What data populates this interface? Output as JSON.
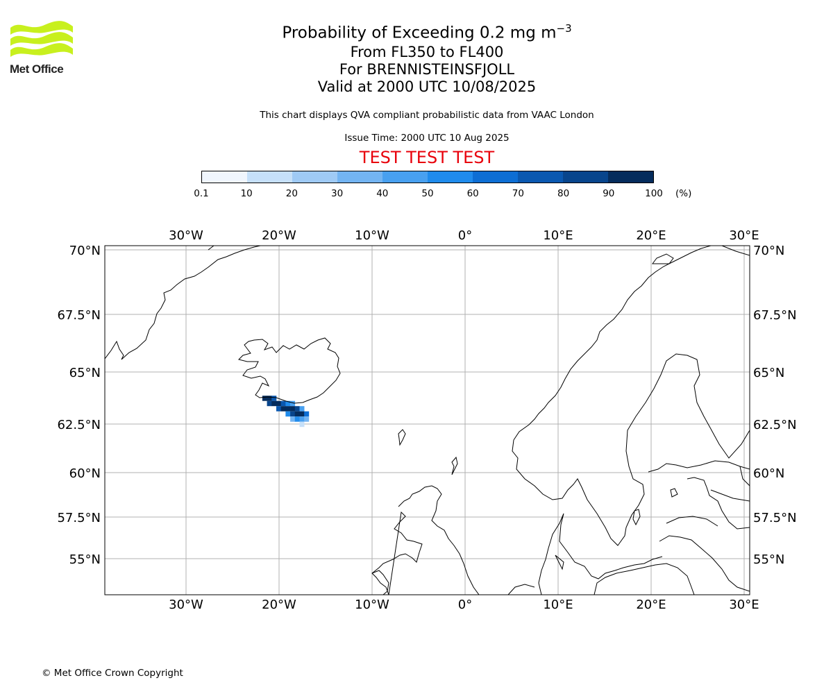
{
  "logo": {
    "text": "Met Office",
    "color": "#c8f01e"
  },
  "title": {
    "main": "Probability of Exceeding 0.2 mg m",
    "main_superscript": "−3",
    "level_range": "From FL350 to FL400",
    "volcano": "For BRENNISTEINSFJOLL",
    "valid_time": "Valid at 2000 UTC 10/08/2025"
  },
  "note": "This chart displays QVA compliant probabilistic data from VAAC London",
  "issue_time": "Issue Time: 2000 UTC 10 Aug 2025",
  "test_banner": "TEST TEST TEST",
  "test_color": "#e8000b",
  "colorbar": {
    "ticks": [
      "0.1",
      "10",
      "20",
      "30",
      "40",
      "50",
      "60",
      "70",
      "80",
      "90",
      "100"
    ],
    "unit": "(%)",
    "colors": [
      "#f0f6fd",
      "#c6e0f9",
      "#9fcaf5",
      "#73b4f2",
      "#48a0f0",
      "#1f8bec",
      "#0d6ed4",
      "#0a58b0",
      "#08458c",
      "#052c5c"
    ]
  },
  "map": {
    "lon_labels": [
      "30°W",
      "20°W",
      "10°W",
      "0°",
      "10°E",
      "20°E",
      "30°E"
    ],
    "lat_labels": [
      "70°N",
      "67.5°N",
      "65°N",
      "62.5°N",
      "60°N",
      "57.5°N",
      "55°N"
    ],
    "gridline_color": "#b0b0b0",
    "plume_cells": [
      {
        "lat": 63.86,
        "lon": -21.8,
        "prob": 95
      },
      {
        "lat": 63.86,
        "lon": -21.3,
        "prob": 90
      },
      {
        "lat": 63.86,
        "lon": -20.8,
        "prob": 75
      },
      {
        "lat": 63.61,
        "lon": -21.3,
        "prob": 85
      },
      {
        "lat": 63.61,
        "lon": -20.8,
        "prob": 95
      },
      {
        "lat": 63.61,
        "lon": -20.3,
        "prob": 90
      },
      {
        "lat": 63.61,
        "lon": -19.8,
        "prob": 70
      },
      {
        "lat": 63.61,
        "lon": -19.3,
        "prob": 55
      },
      {
        "lat": 63.61,
        "lon": -18.8,
        "prob": 45
      },
      {
        "lat": 63.36,
        "lon": -20.3,
        "prob": 70
      },
      {
        "lat": 63.36,
        "lon": -19.8,
        "prob": 95
      },
      {
        "lat": 63.36,
        "lon": -19.3,
        "prob": 98
      },
      {
        "lat": 63.36,
        "lon": -18.8,
        "prob": 95
      },
      {
        "lat": 63.36,
        "lon": -18.3,
        "prob": 85
      },
      {
        "lat": 63.36,
        "lon": -17.8,
        "prob": 45
      },
      {
        "lat": 63.11,
        "lon": -19.3,
        "prob": 55
      },
      {
        "lat": 63.11,
        "lon": -18.8,
        "prob": 80
      },
      {
        "lat": 63.11,
        "lon": -18.3,
        "prob": 95
      },
      {
        "lat": 63.11,
        "lon": -17.8,
        "prob": 90
      },
      {
        "lat": 63.11,
        "lon": -17.3,
        "prob": 60
      },
      {
        "lat": 62.86,
        "lon": -18.8,
        "prob": 35
      },
      {
        "lat": 62.86,
        "lon": -18.3,
        "prob": 55
      },
      {
        "lat": 62.86,
        "lon": -17.8,
        "prob": 45
      },
      {
        "lat": 62.86,
        "lon": -17.3,
        "prob": 30
      },
      {
        "lat": 62.61,
        "lon": -17.8,
        "prob": 15
      }
    ]
  },
  "copyright": "© Met Office Crown Copyright"
}
